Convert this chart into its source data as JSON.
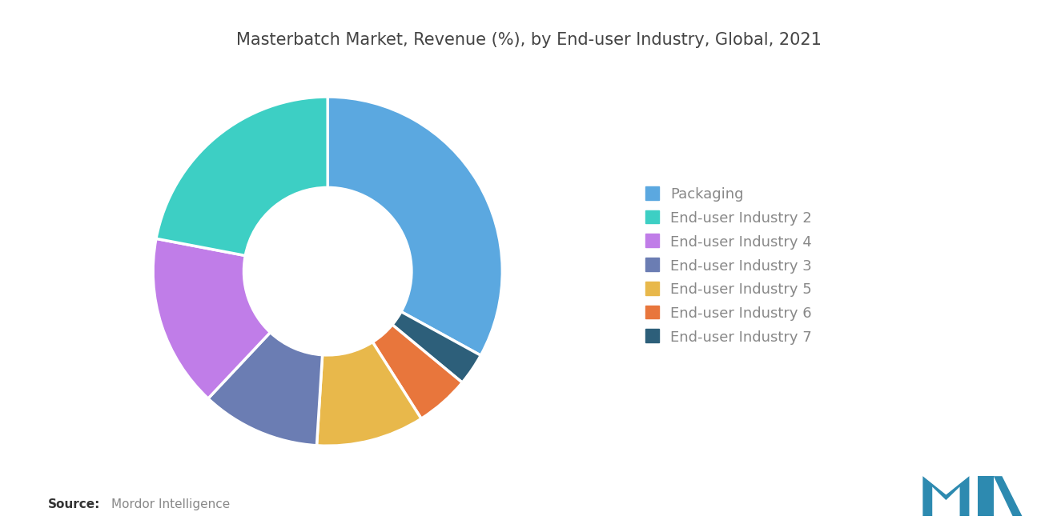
{
  "title": "Masterbatch Market, Revenue (%), by End-user Industry, Global, 2021",
  "labels": [
    "Packaging",
    "End-user Industry 2",
    "End-user Industry 4",
    "End-user Industry 3",
    "End-user Industry 5",
    "End-user Industry 6",
    "End-user Industry 7"
  ],
  "values": [
    33,
    22,
    16,
    11,
    10,
    5,
    3
  ],
  "colors": [
    "#5ba8e0",
    "#3dcfc4",
    "#c07de8",
    "#6b7db3",
    "#e8b84b",
    "#e8763c",
    "#2d5f7a"
  ],
  "pie_order": [
    0,
    6,
    5,
    4,
    3,
    2,
    1
  ],
  "source_bold": "Source:",
  "source_text": "Mordor Intelligence",
  "background_color": "#ffffff",
  "legend_label_color": "#888888",
  "title_color": "#444444",
  "donut_width": 0.52,
  "start_angle": 90,
  "legend_fontsize": 13,
  "title_fontsize": 15
}
